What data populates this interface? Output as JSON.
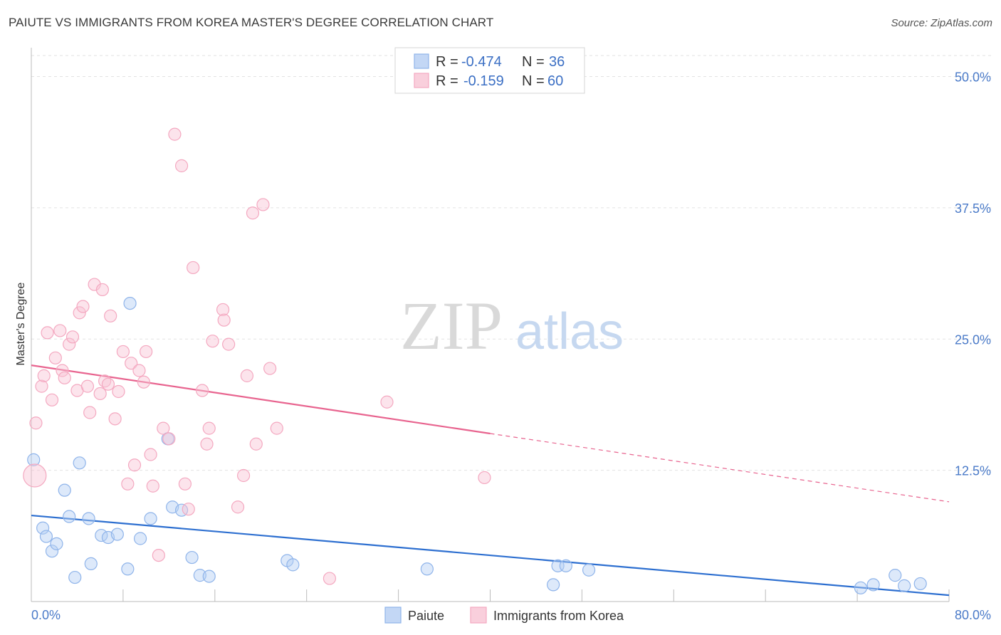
{
  "header": {
    "title": "PAIUTE VS IMMIGRANTS FROM KOREA MASTER'S DEGREE CORRELATION CHART",
    "source": "Source: ZipAtlas.com"
  },
  "watermark": {
    "zip": "ZIP",
    "atlas": "atlas"
  },
  "chart_data": {
    "type": "scatter",
    "title": "PAIUTE VS IMMIGRANTS FROM KOREA MASTER'S DEGREE CORRELATION CHART",
    "xlabel": "",
    "ylabel": "Master's Degree",
    "xlim": [
      0,
      80
    ],
    "ylim": [
      0,
      52
    ],
    "x_tick_labels": {
      "min": "0.0%",
      "max": "80.0%"
    },
    "y_ticks": [
      {
        "value": 12.5,
        "label": "12.5%"
      },
      {
        "value": 25.0,
        "label": "25.0%"
      },
      {
        "value": 37.5,
        "label": "37.5%"
      },
      {
        "value": 50.0,
        "label": "50.0%"
      }
    ],
    "legend_box": {
      "rows": [
        {
          "r_label": "R =",
          "r_value": "-0.474",
          "n_label": "N =",
          "n_value": "36"
        },
        {
          "r_label": "R =",
          "r_value": "-0.159",
          "n_label": "N =",
          "n_value": "60"
        }
      ]
    },
    "series": [
      {
        "name": "Paiute",
        "color": "#8fb4ea",
        "line_color": "#2d6fd0",
        "trend": {
          "x0": 0,
          "y0": 8.2,
          "x1": 80,
          "y1": 0.6,
          "solid_until": 80
        },
        "points": [
          [
            0.2,
            13.5
          ],
          [
            1.0,
            7.0
          ],
          [
            1.3,
            6.2
          ],
          [
            1.8,
            4.8
          ],
          [
            2.2,
            5.5
          ],
          [
            2.9,
            10.6
          ],
          [
            3.3,
            8.1
          ],
          [
            3.8,
            2.3
          ],
          [
            4.2,
            13.2
          ],
          [
            5.0,
            7.9
          ],
          [
            5.2,
            3.6
          ],
          [
            6.1,
            6.3
          ],
          [
            6.7,
            6.1
          ],
          [
            7.5,
            6.4
          ],
          [
            8.4,
            3.1
          ],
          [
            8.6,
            28.4
          ],
          [
            9.5,
            6.0
          ],
          [
            10.4,
            7.9
          ],
          [
            11.9,
            15.5
          ],
          [
            12.3,
            9.0
          ],
          [
            13.1,
            8.7
          ],
          [
            14.0,
            4.2
          ],
          [
            14.7,
            2.5
          ],
          [
            15.5,
            2.4
          ],
          [
            22.3,
            3.9
          ],
          [
            22.8,
            3.5
          ],
          [
            34.5,
            3.1
          ],
          [
            45.5,
            1.6
          ],
          [
            45.9,
            3.4
          ],
          [
            46.6,
            3.4
          ],
          [
            48.6,
            3.0
          ],
          [
            72.3,
            1.3
          ],
          [
            73.4,
            1.6
          ],
          [
            75.3,
            2.5
          ],
          [
            76.1,
            1.5
          ],
          [
            77.5,
            1.7
          ]
        ]
      },
      {
        "name": "Immigrants from Korea",
        "color": "#f4a8c0",
        "line_color": "#e8648f",
        "trend": {
          "x0": 0,
          "y0": 22.5,
          "x1": 80,
          "y1": 9.5,
          "solid_until": 40
        },
        "points": [
          [
            0.4,
            17.0
          ],
          [
            0.3,
            12.0
          ],
          [
            0.9,
            20.5
          ],
          [
            1.1,
            21.5
          ],
          [
            1.4,
            25.6
          ],
          [
            1.8,
            19.2
          ],
          [
            2.1,
            23.2
          ],
          [
            2.5,
            25.8
          ],
          [
            2.7,
            22.0
          ],
          [
            2.9,
            21.3
          ],
          [
            3.3,
            24.5
          ],
          [
            3.6,
            25.2
          ],
          [
            4.0,
            20.1
          ],
          [
            4.2,
            27.5
          ],
          [
            4.5,
            28.1
          ],
          [
            4.9,
            20.5
          ],
          [
            5.1,
            18.0
          ],
          [
            5.5,
            30.2
          ],
          [
            6.0,
            19.8
          ],
          [
            6.2,
            29.7
          ],
          [
            6.4,
            21.0
          ],
          [
            6.7,
            20.7
          ],
          [
            6.9,
            27.2
          ],
          [
            7.3,
            17.4
          ],
          [
            7.6,
            20.0
          ],
          [
            8.0,
            23.8
          ],
          [
            8.4,
            11.2
          ],
          [
            8.7,
            22.7
          ],
          [
            9.0,
            13.0
          ],
          [
            9.4,
            22.0
          ],
          [
            9.8,
            20.9
          ],
          [
            10.0,
            23.8
          ],
          [
            10.4,
            14.0
          ],
          [
            10.6,
            11.0
          ],
          [
            11.1,
            4.4
          ],
          [
            11.5,
            16.5
          ],
          [
            12.0,
            15.5
          ],
          [
            12.5,
            44.5
          ],
          [
            13.1,
            41.5
          ],
          [
            13.4,
            11.2
          ],
          [
            13.7,
            8.8
          ],
          [
            14.1,
            31.8
          ],
          [
            14.9,
            20.1
          ],
          [
            15.3,
            15.0
          ],
          [
            15.5,
            16.5
          ],
          [
            15.8,
            24.8
          ],
          [
            16.7,
            27.8
          ],
          [
            16.8,
            26.8
          ],
          [
            17.2,
            24.5
          ],
          [
            18.0,
            9.0
          ],
          [
            18.5,
            12.0
          ],
          [
            18.8,
            21.5
          ],
          [
            19.3,
            37.0
          ],
          [
            19.6,
            15.0
          ],
          [
            20.2,
            37.8
          ],
          [
            20.8,
            22.2
          ],
          [
            21.4,
            16.5
          ],
          [
            26.0,
            2.2
          ],
          [
            31.0,
            19.0
          ],
          [
            39.5,
            11.8
          ]
        ]
      }
    ],
    "legend": [
      {
        "label": "Paiute",
        "color": "#8fb4ea"
      },
      {
        "label": "Immigrants from Korea",
        "color": "#f4a8c0"
      }
    ]
  }
}
